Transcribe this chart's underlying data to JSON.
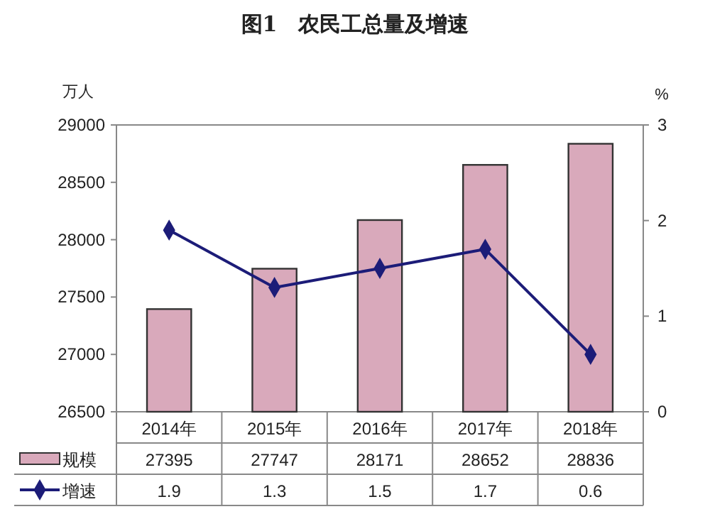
{
  "chart_data": {
    "type": "bar",
    "title": "图1　农民工总量及增速",
    "ylabel": "万人",
    "y2label": "%",
    "categories": [
      "2014年",
      "2015年",
      "2016年",
      "2017年",
      "2018年"
    ],
    "series": [
      {
        "name": "规模",
        "color": "#d9a9bb",
        "values": [
          27395,
          27747,
          28171,
          28652,
          28836
        ]
      },
      {
        "name": "增速",
        "type": "line",
        "axis": "y2",
        "color": "#1c1c78",
        "marker": "diamond",
        "values": [
          1.9,
          1.3,
          1.5,
          1.7,
          0.6
        ]
      }
    ],
    "ylim": [
      26500,
      29000
    ],
    "yticks": [
      26500,
      27000,
      27500,
      28000,
      28500,
      29000
    ],
    "y2lim": [
      0,
      3
    ],
    "y2ticks": [
      0,
      1,
      2,
      3
    ],
    "data_labels": true,
    "legend": "bottom",
    "grid": false
  }
}
